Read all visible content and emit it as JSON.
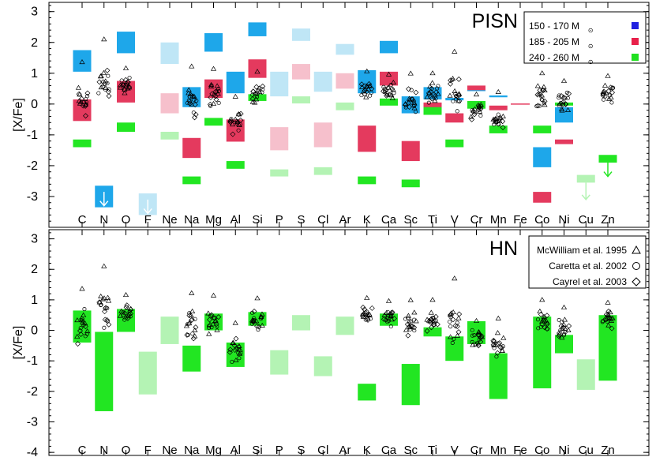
{
  "chart_data": [
    {
      "type": "bar",
      "title": "PISN",
      "ylabel": "[X/Fe]",
      "ylim": [
        -4,
        3.3
      ],
      "yticks": [
        -3,
        -2,
        -1,
        0,
        1,
        2,
        3
      ],
      "categories": [
        "C",
        "N",
        "O",
        "F",
        "Ne",
        "Na",
        "Mg",
        "Al",
        "Si",
        "P",
        "S",
        "Cl",
        "Ar",
        "K",
        "Ca",
        "Sc",
        "Ti",
        "V",
        "Cr",
        "Mn",
        "Fe",
        "Co",
        "Ni",
        "Cu",
        "Zn"
      ],
      "legend": {
        "position": "top-right",
        "entries": [
          {
            "label": "150 - 170 M",
            "sub": "⊙",
            "color": "#2020e0"
          },
          {
            "label": "185 - 205 M",
            "sub": "⊙",
            "color": "#e8204a"
          },
          {
            "label": "240 - 260 M",
            "sub": "⊙",
            "color": "#20e020"
          }
        ]
      },
      "colors": {
        "blue": "#1ea7ea",
        "red": "#e43a5e",
        "green": "#22e622",
        "blue_light": "#bfe6f6",
        "red_light": "#f6c0cc",
        "green_light": "#b4f3b4"
      },
      "series": [
        {
          "color": "blue",
          "ranges": [
            [
              "C",
              1.05,
              1.75
            ],
            [
              "N",
              -3.35,
              -2.65
            ],
            [
              "O",
              1.65,
              2.35
            ],
            [
              "F",
              -3.6,
              -2.9
            ],
            [
              "Ne",
              1.3,
              2.0
            ],
            [
              "Na",
              -0.1,
              0.55
            ],
            [
              "Mg",
              1.7,
              2.3
            ],
            [
              "Al",
              0.35,
              1.05
            ],
            [
              "Si",
              2.2,
              2.65
            ],
            [
              "P",
              0.25,
              1.05
            ],
            [
              "S",
              2.05,
              2.45
            ],
            [
              "Cl",
              0.4,
              1.05
            ],
            [
              "Ar",
              1.6,
              1.95
            ],
            [
              "K",
              0.35,
              1.1
            ],
            [
              "Ca",
              1.65,
              2.05
            ],
            [
              "Sc",
              -0.3,
              0.25
            ],
            [
              "Ti",
              0.15,
              0.55
            ],
            [
              "V",
              0.12,
              0.2
            ],
            [
              "Cr",
              0.42,
              0.5
            ],
            [
              "Mn",
              0.22,
              0.28
            ],
            [
              "Co",
              -2.05,
              -1.4
            ],
            [
              "Ni",
              -0.6,
              -0.1
            ]
          ]
        },
        {
          "color": "red",
          "ranges": [
            [
              "C",
              -0.55,
              0.15
            ],
            [
              "O",
              0.05,
              0.75
            ],
            [
              "Ne",
              -0.3,
              0.35
            ],
            [
              "Na",
              -1.75,
              -1.1
            ],
            [
              "Mg",
              0.2,
              0.8
            ],
            [
              "Al",
              -1.22,
              -0.5
            ],
            [
              "Si",
              0.85,
              1.45
            ],
            [
              "P",
              -1.5,
              -0.75
            ],
            [
              "S",
              0.8,
              1.3
            ],
            [
              "Cl",
              -1.4,
              -0.6
            ],
            [
              "Ar",
              0.5,
              1.0
            ],
            [
              "K",
              -1.55,
              -0.7
            ],
            [
              "Ca",
              0.6,
              1.05
            ],
            [
              "Sc",
              -1.85,
              -1.2
            ],
            [
              "Ti",
              -0.25,
              0.05
            ],
            [
              "V",
              -0.6,
              -0.3
            ],
            [
              "Cr",
              0.45,
              0.6
            ],
            [
              "Mn",
              -0.2,
              -0.05
            ],
            [
              "Co",
              -3.2,
              -2.85
            ],
            [
              "Ni",
              -1.3,
              -1.15
            ]
          ]
        },
        {
          "color": "green",
          "ranges": [
            [
              "C",
              -1.4,
              -1.15
            ],
            [
              "O",
              -0.9,
              -0.6
            ],
            [
              "Ne",
              -1.15,
              -0.9
            ],
            [
              "Na",
              -2.6,
              -2.35
            ],
            [
              "Mg",
              -0.7,
              -0.45
            ],
            [
              "Al",
              -2.1,
              -1.85
            ],
            [
              "Si",
              0.1,
              0.32
            ],
            [
              "P",
              -2.35,
              -2.12
            ],
            [
              "S",
              0.02,
              0.25
            ],
            [
              "Cl",
              -2.3,
              -2.05
            ],
            [
              "Ar",
              -0.2,
              0.05
            ],
            [
              "K",
              -2.6,
              -2.35
            ],
            [
              "Ca",
              -0.05,
              0.18
            ],
            [
              "Sc",
              -2.7,
              -2.45
            ],
            [
              "Ti",
              -0.35,
              -0.1
            ],
            [
              "V",
              -1.4,
              -1.15
            ],
            [
              "Cr",
              -0.15,
              0.1
            ],
            [
              "Mn",
              -0.95,
              -0.7
            ],
            [
              "Co",
              -0.95,
              -0.7
            ],
            [
              "Ni",
              -0.05,
              0.05
            ],
            [
              "Cu",
              -2.55,
              -2.3
            ],
            [
              "Zn",
              -1.9,
              -1.65
            ]
          ]
        }
      ],
      "fe_line": {
        "element": "Fe",
        "value": 0,
        "color": "red"
      },
      "upper_limit_arrows": [
        {
          "element": "N",
          "from": -2.85,
          "to": -3.3,
          "color": "white"
        },
        {
          "element": "F",
          "from": -3.1,
          "to": -3.55,
          "color": "white"
        },
        {
          "element": "Cu",
          "from": -2.55,
          "to": -3.1,
          "color": "green_light"
        },
        {
          "element": "Zn",
          "from": -1.9,
          "to": -2.35,
          "color": "green"
        }
      ]
    },
    {
      "type": "bar",
      "title": "HN",
      "ylabel": "[X/Fe]",
      "ylim": [
        -4.1,
        3.3
      ],
      "yticks": [
        -4,
        -3,
        -2,
        -1,
        0,
        1,
        2,
        3
      ],
      "categories": [
        "C",
        "N",
        "O",
        "F",
        "Ne",
        "Na",
        "Mg",
        "Al",
        "Si",
        "P",
        "S",
        "Cl",
        "Ar",
        "K",
        "Ca",
        "Sc",
        "Ti",
        "V",
        "Cr",
        "Mn",
        "Fe",
        "Co",
        "Ni",
        "Cu",
        "Zn"
      ],
      "legend": {
        "position": "top-right",
        "entries": [
          {
            "label": "McWilliam et al. 1995",
            "marker": "triangle"
          },
          {
            "label": "Caretta et al. 2002",
            "marker": "circle"
          },
          {
            "label": "Cayrel et al. 2003",
            "marker": "diamond"
          }
        ]
      },
      "ranges": [
        [
          "C",
          -0.4,
          0.65,
          "green"
        ],
        [
          "N",
          -2.65,
          -0.05,
          "green"
        ],
        [
          "O",
          -0.05,
          0.7,
          "green"
        ],
        [
          "F",
          -2.1,
          -0.7,
          "green_light"
        ],
        [
          "Ne",
          -0.45,
          0.45,
          "green_light"
        ],
        [
          "Na",
          -1.35,
          -0.5,
          "green"
        ],
        [
          "Mg",
          0.0,
          0.55,
          "green"
        ],
        [
          "Al",
          -1.2,
          -0.4,
          "green"
        ],
        [
          "Si",
          0.15,
          0.6,
          "green"
        ],
        [
          "P",
          -1.45,
          -0.65,
          "green_light"
        ],
        [
          "S",
          0.0,
          0.5,
          "green_light"
        ],
        [
          "Cl",
          -1.5,
          -0.85,
          "green_light"
        ],
        [
          "Ar",
          -0.15,
          0.45,
          "green_light"
        ],
        [
          "K",
          -2.3,
          -1.75,
          "green"
        ],
        [
          "Ca",
          0.15,
          0.55,
          "green"
        ],
        [
          "Sc",
          -2.45,
          -1.1,
          "green"
        ],
        [
          "Ti",
          -0.2,
          0.1,
          "green"
        ],
        [
          "V",
          -1.0,
          -0.2,
          "green"
        ],
        [
          "Cr",
          -0.45,
          0.3,
          "green"
        ],
        [
          "Mn",
          -2.25,
          -0.75,
          "green"
        ],
        [
          "Co",
          -1.9,
          0.45,
          "green"
        ],
        [
          "Ni",
          -0.75,
          -0.15,
          "green"
        ],
        [
          "Cu",
          -1.95,
          -0.95,
          "green_light"
        ],
        [
          "Zn",
          -1.65,
          0.5,
          "green"
        ]
      ]
    }
  ]
}
